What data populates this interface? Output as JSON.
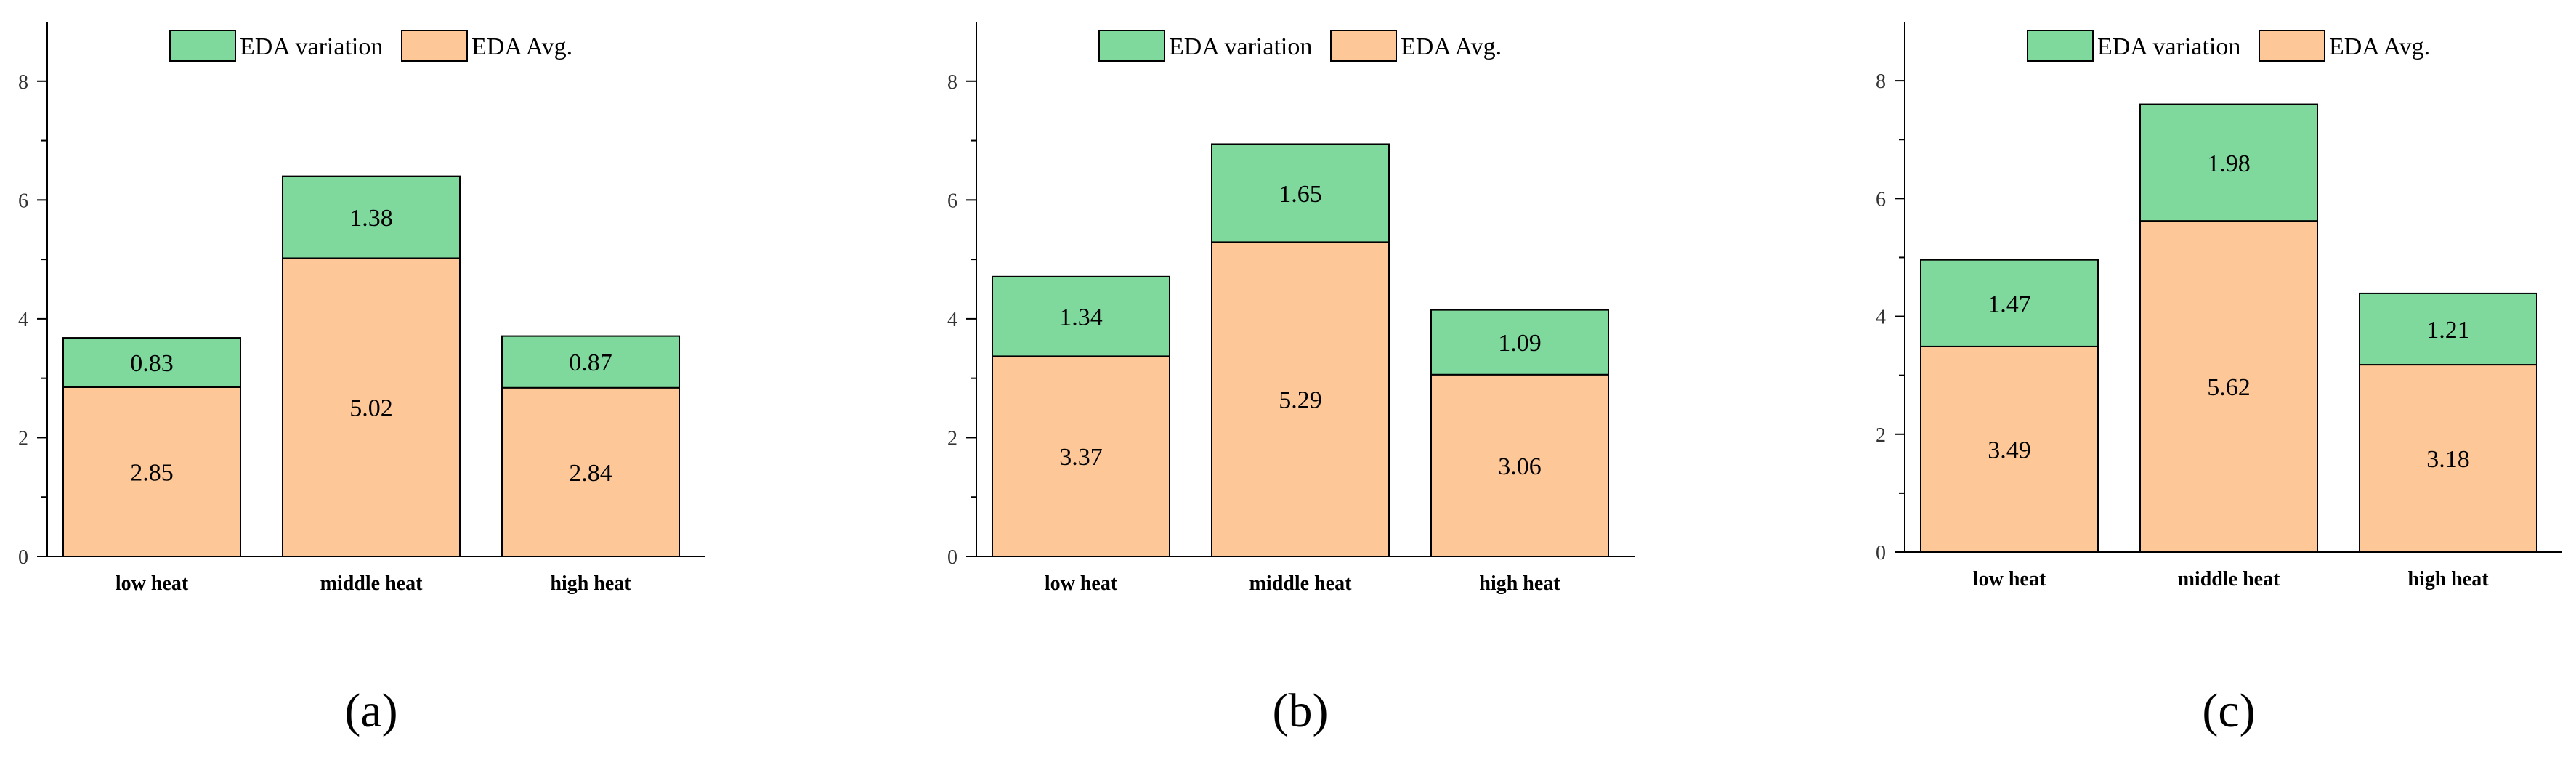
{
  "colors": {
    "avg": "#fdc797",
    "variation": "#7fd99d"
  },
  "chart_data": [
    {
      "type": "bar",
      "stacked": true,
      "panel_label": "(a)",
      "categories": [
        "low heat",
        "middle heat",
        "high heat"
      ],
      "series": [
        {
          "name": "EDA Avg.",
          "values": [
            2.85,
            5.02,
            2.84
          ],
          "labels": [
            "2.85",
            "5.02",
            "2.84"
          ]
        },
        {
          "name": "EDA variation",
          "values": [
            0.83,
            1.38,
            0.87
          ],
          "labels": [
            "0.83",
            "1.38",
            "0.87"
          ]
        }
      ],
      "ylim": [
        0,
        9
      ],
      "yticks": [
        "0",
        "2",
        "4",
        "6",
        "8"
      ],
      "legend": "top-center",
      "grid": false
    },
    {
      "type": "bar",
      "stacked": true,
      "panel_label": "(b)",
      "categories": [
        "low heat",
        "middle heat",
        "high heat"
      ],
      "series": [
        {
          "name": "EDA Avg.",
          "values": [
            3.37,
            5.29,
            3.06
          ],
          "labels": [
            "3.37",
            "5.29",
            "3.06"
          ]
        },
        {
          "name": "EDA variation",
          "values": [
            1.34,
            1.65,
            1.09
          ],
          "labels": [
            "1.34",
            "1.65",
            "1.09"
          ]
        }
      ],
      "ylim": [
        0,
        9
      ],
      "yticks": [
        "0",
        "2",
        "4",
        "6",
        "8"
      ],
      "legend": "top-center",
      "grid": false
    },
    {
      "type": "bar",
      "stacked": true,
      "panel_label": "(c)",
      "categories": [
        "low heat",
        "middle heat",
        "high heat"
      ],
      "series": [
        {
          "name": "EDA Avg.",
          "values": [
            3.49,
            5.62,
            3.18
          ],
          "labels": [
            "3.49",
            "5.62",
            "3.18"
          ]
        },
        {
          "name": "EDA variation",
          "values": [
            1.47,
            1.98,
            1.21
          ],
          "labels": [
            "1.47",
            "1.98",
            "1.21"
          ]
        }
      ],
      "ylim": [
        0,
        9
      ],
      "yticks": [
        "0",
        "2",
        "4",
        "6",
        "8"
      ],
      "legend": "top-center",
      "grid": false
    }
  ]
}
